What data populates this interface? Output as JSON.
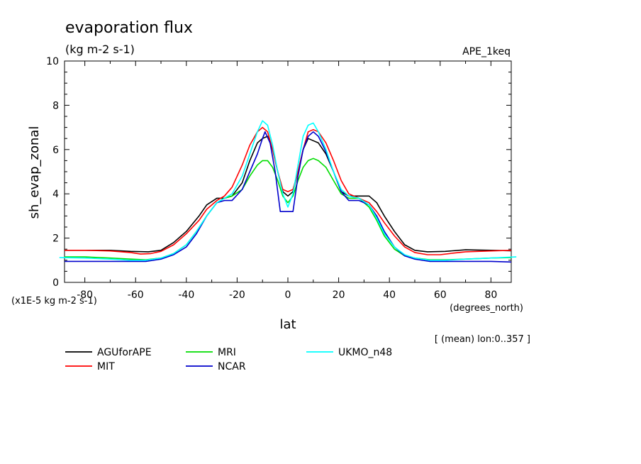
{
  "chart_data": {
    "type": "line",
    "title": "evaporation flux",
    "units": "(kg m-2 s-1)",
    "experiment": "APE_1keq",
    "ylabel": "sh_evap_zonal",
    "xlabel": "lat",
    "x_units": "(degrees_north)",
    "y_scale_note": "(x1E-5 kg m-2 s-1)",
    "footnote": "[ (mean) lon:0..357 ]",
    "xlim": [
      -88,
      88
    ],
    "ylim": [
      0,
      10
    ],
    "x_ticks": [
      -80,
      -60,
      -40,
      -20,
      0,
      20,
      40,
      60,
      80
    ],
    "x_tick_labels": [
      "-80",
      "-60",
      "-40",
      "-20",
      "0",
      "20",
      "40",
      "60",
      "80"
    ],
    "y_ticks": [
      0,
      2,
      4,
      6,
      8,
      10
    ],
    "y_tick_labels": [
      "0",
      "2",
      "4",
      "6",
      "8",
      "10"
    ],
    "grid": false,
    "legend_position": "bottom",
    "series": [
      {
        "name": "AGUforAPE",
        "color": "#000000",
        "points": [
          [
            -88,
            1.45
          ],
          [
            -80,
            1.45
          ],
          [
            -70,
            1.45
          ],
          [
            -62,
            1.4
          ],
          [
            -55,
            1.38
          ],
          [
            -50,
            1.45
          ],
          [
            -45,
            1.8
          ],
          [
            -40,
            2.3
          ],
          [
            -35,
            3.0
          ],
          [
            -32,
            3.5
          ],
          [
            -28,
            3.8
          ],
          [
            -25,
            3.8
          ],
          [
            -22,
            3.9
          ],
          [
            -18,
            4.5
          ],
          [
            -15,
            5.5
          ],
          [
            -12,
            6.3
          ],
          [
            -10,
            6.5
          ],
          [
            -8,
            6.6
          ],
          [
            -6,
            6.0
          ],
          [
            -4,
            5.0
          ],
          [
            -2,
            4.1
          ],
          [
            0,
            3.9
          ],
          [
            2,
            4.1
          ],
          [
            4,
            5.0
          ],
          [
            6,
            6.0
          ],
          [
            8,
            6.5
          ],
          [
            10,
            6.4
          ],
          [
            12,
            6.3
          ],
          [
            15,
            5.8
          ],
          [
            18,
            5.0
          ],
          [
            21,
            4.1
          ],
          [
            24,
            3.9
          ],
          [
            28,
            3.9
          ],
          [
            32,
            3.9
          ],
          [
            35,
            3.6
          ],
          [
            38,
            3.0
          ],
          [
            42,
            2.3
          ],
          [
            46,
            1.7
          ],
          [
            50,
            1.45
          ],
          [
            55,
            1.38
          ],
          [
            62,
            1.4
          ],
          [
            70,
            1.47
          ],
          [
            80,
            1.45
          ],
          [
            88,
            1.43
          ]
        ]
      },
      {
        "name": "MIT",
        "color": "#ff0000",
        "points": [
          [
            -88,
            1.45
          ],
          [
            -80,
            1.45
          ],
          [
            -70,
            1.42
          ],
          [
            -62,
            1.35
          ],
          [
            -58,
            1.28
          ],
          [
            -54,
            1.3
          ],
          [
            -50,
            1.4
          ],
          [
            -45,
            1.7
          ],
          [
            -40,
            2.2
          ],
          [
            -35,
            2.8
          ],
          [
            -32,
            3.3
          ],
          [
            -28,
            3.7
          ],
          [
            -25,
            3.9
          ],
          [
            -22,
            4.3
          ],
          [
            -18,
            5.3
          ],
          [
            -15,
            6.2
          ],
          [
            -12,
            6.8
          ],
          [
            -10,
            7.0
          ],
          [
            -8,
            6.8
          ],
          [
            -6,
            6.0
          ],
          [
            -4,
            5.0
          ],
          [
            -2,
            4.2
          ],
          [
            0,
            4.1
          ],
          [
            2,
            4.2
          ],
          [
            4,
            5.0
          ],
          [
            6,
            6.0
          ],
          [
            8,
            6.8
          ],
          [
            10,
            6.9
          ],
          [
            12,
            6.8
          ],
          [
            15,
            6.3
          ],
          [
            18,
            5.5
          ],
          [
            21,
            4.6
          ],
          [
            24,
            4.0
          ],
          [
            28,
            3.8
          ],
          [
            32,
            3.6
          ],
          [
            35,
            3.2
          ],
          [
            38,
            2.7
          ],
          [
            42,
            2.1
          ],
          [
            46,
            1.6
          ],
          [
            50,
            1.35
          ],
          [
            55,
            1.25
          ],
          [
            60,
            1.25
          ],
          [
            65,
            1.32
          ],
          [
            70,
            1.38
          ],
          [
            80,
            1.42
          ],
          [
            88,
            1.45
          ]
        ]
      },
      {
        "name": "MRI",
        "color": "#00dd00",
        "points": [
          [
            -88,
            1.15
          ],
          [
            -80,
            1.15
          ],
          [
            -70,
            1.1
          ],
          [
            -62,
            1.05
          ],
          [
            -56,
            1.02
          ],
          [
            -50,
            1.1
          ],
          [
            -45,
            1.3
          ],
          [
            -40,
            1.7
          ],
          [
            -36,
            2.3
          ],
          [
            -32,
            3.0
          ],
          [
            -28,
            3.6
          ],
          [
            -25,
            3.8
          ],
          [
            -22,
            3.9
          ],
          [
            -18,
            4.2
          ],
          [
            -15,
            4.8
          ],
          [
            -12,
            5.3
          ],
          [
            -10,
            5.5
          ],
          [
            -8,
            5.5
          ],
          [
            -6,
            5.2
          ],
          [
            -4,
            4.6
          ],
          [
            -2,
            3.9
          ],
          [
            0,
            3.6
          ],
          [
            2,
            3.9
          ],
          [
            4,
            4.6
          ],
          [
            6,
            5.2
          ],
          [
            8,
            5.5
          ],
          [
            10,
            5.6
          ],
          [
            12,
            5.5
          ],
          [
            15,
            5.2
          ],
          [
            18,
            4.6
          ],
          [
            21,
            4.0
          ],
          [
            24,
            3.8
          ],
          [
            28,
            3.8
          ],
          [
            32,
            3.4
          ],
          [
            35,
            2.8
          ],
          [
            38,
            2.1
          ],
          [
            42,
            1.5
          ],
          [
            46,
            1.2
          ],
          [
            50,
            1.1
          ],
          [
            56,
            1.02
          ],
          [
            62,
            1.02
          ],
          [
            70,
            1.05
          ],
          [
            80,
            1.1
          ],
          [
            88,
            1.12
          ]
        ]
      },
      {
        "name": "NCAR",
        "color": "#0000cc",
        "points": [
          [
            -88,
            0.95
          ],
          [
            -80,
            0.95
          ],
          [
            -70,
            0.95
          ],
          [
            -62,
            0.95
          ],
          [
            -56,
            0.95
          ],
          [
            -50,
            1.05
          ],
          [
            -45,
            1.25
          ],
          [
            -40,
            1.6
          ],
          [
            -36,
            2.2
          ],
          [
            -32,
            3.0
          ],
          [
            -28,
            3.6
          ],
          [
            -25,
            3.7
          ],
          [
            -22,
            3.7
          ],
          [
            -18,
            4.2
          ],
          [
            -15,
            5.0
          ],
          [
            -12,
            5.8
          ],
          [
            -10,
            6.5
          ],
          [
            -9,
            6.8
          ],
          [
            -7,
            6.3
          ],
          [
            -5,
            5.0
          ],
          [
            -3,
            3.2
          ],
          [
            0,
            3.2
          ],
          [
            2,
            3.2
          ],
          [
            4,
            4.8
          ],
          [
            6,
            6.0
          ],
          [
            8,
            6.6
          ],
          [
            10,
            6.8
          ],
          [
            12,
            6.6
          ],
          [
            15,
            5.9
          ],
          [
            18,
            5.0
          ],
          [
            21,
            4.1
          ],
          [
            24,
            3.7
          ],
          [
            28,
            3.7
          ],
          [
            32,
            3.5
          ],
          [
            35,
            3.0
          ],
          [
            38,
            2.3
          ],
          [
            42,
            1.6
          ],
          [
            46,
            1.2
          ],
          [
            50,
            1.05
          ],
          [
            56,
            0.95
          ],
          [
            62,
            0.95
          ],
          [
            70,
            0.95
          ],
          [
            80,
            0.95
          ],
          [
            88,
            0.92
          ]
        ]
      },
      {
        "name": "UKMO_n48",
        "color": "#00ffff",
        "points": [
          [
            -90,
            1.12
          ],
          [
            -80,
            1.1
          ],
          [
            -70,
            1.05
          ],
          [
            -62,
            1.0
          ],
          [
            -56,
            1.0
          ],
          [
            -50,
            1.1
          ],
          [
            -45,
            1.3
          ],
          [
            -40,
            1.7
          ],
          [
            -36,
            2.3
          ],
          [
            -32,
            3.0
          ],
          [
            -28,
            3.6
          ],
          [
            -25,
            3.8
          ],
          [
            -22,
            4.0
          ],
          [
            -18,
            4.8
          ],
          [
            -15,
            5.8
          ],
          [
            -12,
            6.8
          ],
          [
            -10,
            7.3
          ],
          [
            -8,
            7.1
          ],
          [
            -6,
            6.2
          ],
          [
            -4,
            5.0
          ],
          [
            -2,
            4.0
          ],
          [
            0,
            3.4
          ],
          [
            2,
            4.0
          ],
          [
            4,
            5.3
          ],
          [
            6,
            6.6
          ],
          [
            8,
            7.1
          ],
          [
            10,
            7.2
          ],
          [
            12,
            6.8
          ],
          [
            15,
            6.0
          ],
          [
            18,
            5.0
          ],
          [
            21,
            4.2
          ],
          [
            24,
            3.9
          ],
          [
            28,
            3.8
          ],
          [
            32,
            3.5
          ],
          [
            35,
            2.9
          ],
          [
            38,
            2.2
          ],
          [
            42,
            1.6
          ],
          [
            46,
            1.25
          ],
          [
            50,
            1.1
          ],
          [
            56,
            1.0
          ],
          [
            62,
            1.0
          ],
          [
            70,
            1.05
          ],
          [
            80,
            1.1
          ],
          [
            90,
            1.15
          ]
        ]
      }
    ]
  }
}
